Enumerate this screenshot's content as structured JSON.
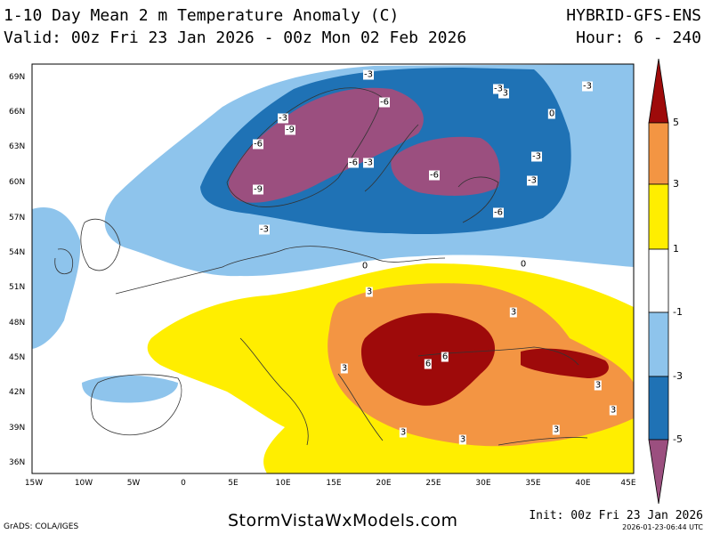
{
  "header": {
    "title": "1-10 Day Mean 2 m Temperature Anomaly (C)",
    "valid": "Valid: 00z Fri 23 Jan 2026 - 00z Mon 02 Feb 2026",
    "model": "HYBRID-GFS-ENS",
    "hours": "Hour: 6 - 240"
  },
  "map": {
    "lat_labels": [
      "69N",
      "66N",
      "63N",
      "60N",
      "57N",
      "54N",
      "51N",
      "48N",
      "45N",
      "42N",
      "39N",
      "36N"
    ],
    "lon_labels": [
      "15W",
      "10W",
      "5W",
      "0",
      "5E",
      "10E",
      "15E",
      "20E",
      "25E",
      "30E",
      "35E",
      "40E",
      "45E"
    ],
    "contour_labels": [
      "-3",
      "-6",
      "-3",
      "-3",
      "-9",
      "-6",
      "-6",
      "-3",
      "-9",
      "-6",
      "-3",
      "-6",
      "-3",
      "-3",
      "-3",
      "-3",
      "0",
      "0",
      "0",
      "3",
      "3",
      "3",
      "6",
      "6",
      "3",
      "3",
      "3",
      "3",
      "3"
    ]
  },
  "colorbar": {
    "labels": [
      "5",
      "3",
      "1",
      "-1",
      "-3",
      "-5"
    ],
    "colors": {
      "below_-5": "#9b4f7f",
      "-5_-3": "#1f72b5",
      "-3_-1": "#8ec4ec",
      "-1_1": "#ffffff",
      "1_3": "#ffee00",
      "3_5": "#f39543",
      "above_5": "#9e0a0a"
    }
  },
  "footer": {
    "left": "GrADS: COLA/IGES",
    "site": "StormVistaWxModels.com",
    "init": "Init: 00z Fri 23 Jan 2026",
    "stamp": "2026-01-23-06:44 UTC"
  }
}
